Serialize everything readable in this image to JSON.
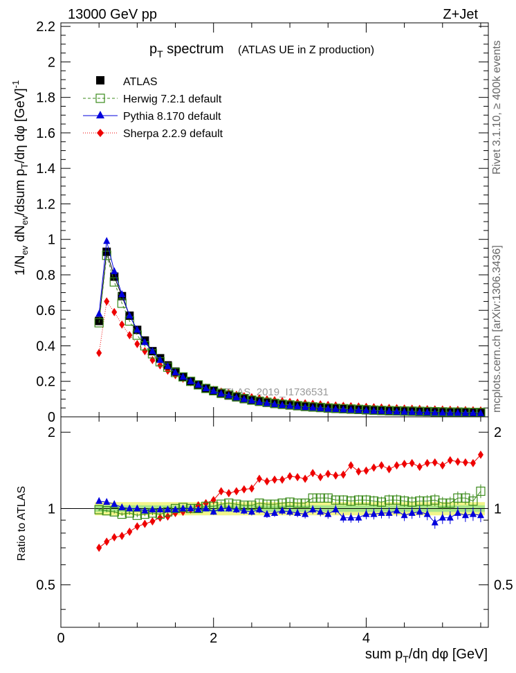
{
  "header": {
    "energy": "13000 GeV pp",
    "process": "Z+Jet",
    "side_label_top": "Rivet 3.1.10, ≥ 400k events",
    "side_label_bottom": "mcplots.cern.ch [arXiv:1306.3436]",
    "watermark": "ATLAS_2019_I1736531"
  },
  "chart_data": [
    {
      "type": "line",
      "title": "p_T spectrum",
      "subtitle": "(ATLAS UE in Z production)",
      "ylabel": "1/N_ev dN_ev/dsum p_T/dη dφ [GeV]^-1",
      "xlabel": "sum p_T/dη dφ [GeV]",
      "xlim": [
        0,
        5.6
      ],
      "ylim": [
        0,
        2.22
      ],
      "yticks": [
        "0",
        "0.2",
        "0.4",
        "0.6",
        "0.8",
        "1",
        "1.2",
        "1.4",
        "1.6",
        "1.8",
        "2",
        "2.2"
      ],
      "xticks": [
        "0",
        "2",
        "4"
      ],
      "legend_position": "top-left",
      "x": [
        0.5,
        0.6,
        0.7,
        0.8,
        0.9,
        1.0,
        1.1,
        1.2,
        1.3,
        1.4,
        1.5,
        1.6,
        1.7,
        1.8,
        1.9,
        2.0,
        2.1,
        2.2,
        2.3,
        2.4,
        2.5,
        2.6,
        2.7,
        2.8,
        2.9,
        3.0,
        3.1,
        3.2,
        3.3,
        3.4,
        3.5,
        3.6,
        3.7,
        3.8,
        3.9,
        4.0,
        4.1,
        4.2,
        4.3,
        4.4,
        4.5,
        4.6,
        4.7,
        4.8,
        4.9,
        5.0,
        5.1,
        5.2,
        5.3,
        5.4,
        5.5
      ],
      "series": [
        {
          "name": "ATLAS",
          "color": "#000000",
          "marker": "square-filled",
          "values": [
            0.54,
            0.93,
            0.79,
            0.68,
            0.57,
            0.49,
            0.43,
            0.37,
            0.33,
            0.29,
            0.255,
            0.225,
            0.2,
            0.18,
            0.16,
            0.145,
            0.13,
            0.12,
            0.11,
            0.1,
            0.092,
            0.085,
            0.079,
            0.073,
            0.068,
            0.064,
            0.06,
            0.056,
            0.053,
            0.05,
            0.047,
            0.045,
            0.043,
            0.041,
            0.039,
            0.037,
            0.035,
            0.034,
            0.032,
            0.031,
            0.03,
            0.029,
            0.028,
            0.027,
            0.026,
            0.025,
            0.024,
            0.024,
            0.023,
            0.022,
            0.022
          ]
        },
        {
          "name": "Herwig 7.2.1 default",
          "color": "#3a8a1a",
          "marker": "square-open",
          "dash": "4,3",
          "values": [
            0.53,
            0.91,
            0.76,
            0.64,
            0.54,
            0.46,
            0.4,
            0.355,
            0.31,
            0.28,
            0.25,
            0.225,
            0.2,
            0.18,
            0.16,
            0.147,
            0.133,
            0.124,
            0.113,
            0.103,
            0.094,
            0.088,
            0.082,
            0.076,
            0.071,
            0.067,
            0.063,
            0.059,
            0.056,
            0.053,
            0.05,
            0.048,
            0.046,
            0.044,
            0.042,
            0.04,
            0.038,
            0.036,
            0.035,
            0.034,
            0.033,
            0.032,
            0.031,
            0.03,
            0.029,
            0.028,
            0.027,
            0.027,
            0.026,
            0.025,
            0.025
          ]
        },
        {
          "name": "Pythia 8.170 default",
          "color": "#0000dd",
          "marker": "triangle-filled",
          "values": [
            0.58,
            0.99,
            0.82,
            0.69,
            0.57,
            0.49,
            0.42,
            0.37,
            0.32,
            0.285,
            0.25,
            0.225,
            0.2,
            0.18,
            0.16,
            0.145,
            0.13,
            0.12,
            0.109,
            0.099,
            0.091,
            0.083,
            0.076,
            0.071,
            0.066,
            0.062,
            0.058,
            0.054,
            0.051,
            0.048,
            0.045,
            0.043,
            0.041,
            0.039,
            0.037,
            0.035,
            0.033,
            0.032,
            0.031,
            0.029,
            0.028,
            0.027,
            0.026,
            0.025,
            0.023,
            0.023,
            0.022,
            0.022,
            0.021,
            0.021,
            0.02
          ]
        },
        {
          "name": "Sherpa 2.2.9 default",
          "color": "#ee0000",
          "marker": "diamond-filled",
          "dash": "1,2",
          "values": [
            0.36,
            0.65,
            0.59,
            0.52,
            0.46,
            0.41,
            0.37,
            0.32,
            0.29,
            0.26,
            0.235,
            0.215,
            0.195,
            0.18,
            0.165,
            0.152,
            0.142,
            0.133,
            0.124,
            0.116,
            0.11,
            0.104,
            0.098,
            0.093,
            0.088,
            0.084,
            0.08,
            0.076,
            0.073,
            0.07,
            0.067,
            0.064,
            0.062,
            0.06,
            0.058,
            0.056,
            0.054,
            0.052,
            0.05,
            0.049,
            0.047,
            0.046,
            0.045,
            0.043,
            0.042,
            0.041,
            0.04,
            0.039,
            0.038,
            0.037,
            0.036
          ]
        }
      ]
    },
    {
      "type": "line",
      "title": "",
      "ylabel": "Ratio to ATLAS",
      "xlabel": "sum p_T/dη dφ [GeV]",
      "xlim": [
        0,
        5.6
      ],
      "ylim": [
        0.34,
        2.3
      ],
      "yticks": [
        "0.5",
        "1",
        "2"
      ],
      "reference_band": {
        "inner": 0.03,
        "outer": 0.06
      },
      "x": [
        0.5,
        0.6,
        0.7,
        0.8,
        0.9,
        1.0,
        1.1,
        1.2,
        1.3,
        1.4,
        1.5,
        1.6,
        1.7,
        1.8,
        1.9,
        2.0,
        2.1,
        2.2,
        2.3,
        2.4,
        2.5,
        2.6,
        2.7,
        2.8,
        2.9,
        3.0,
        3.1,
        3.2,
        3.3,
        3.4,
        3.5,
        3.6,
        3.7,
        3.8,
        3.9,
        4.0,
        4.1,
        4.2,
        4.3,
        4.4,
        4.5,
        4.6,
        4.7,
        4.8,
        4.9,
        5.0,
        5.1,
        5.2,
        5.3,
        5.4,
        5.5
      ],
      "series": [
        {
          "name": "Herwig 7.2.1 default",
          "color": "#3a8a1a",
          "marker": "square-open",
          "values": [
            0.99,
            0.98,
            0.97,
            0.95,
            0.96,
            0.94,
            0.95,
            0.96,
            0.95,
            0.97,
            1.0,
            1.01,
            1.0,
            1.0,
            1.02,
            1.02,
            1.04,
            1.05,
            1.04,
            1.03,
            1.03,
            1.05,
            1.04,
            1.04,
            1.05,
            1.06,
            1.05,
            1.05,
            1.1,
            1.1,
            1.1,
            1.08,
            1.08,
            1.07,
            1.08,
            1.08,
            1.07,
            1.06,
            1.08,
            1.08,
            1.07,
            1.06,
            1.07,
            1.07,
            1.08,
            1.05,
            1.05,
            1.1,
            1.1,
            1.07,
            1.17
          ]
        },
        {
          "name": "Pythia 8.170 default",
          "color": "#0000dd",
          "marker": "triangle-filled",
          "values": [
            1.07,
            1.06,
            1.04,
            1.01,
            1.0,
            1.0,
            0.98,
            0.99,
            0.99,
            0.99,
            0.99,
            1.0,
            1.0,
            0.99,
            1.0,
            0.97,
            1.0,
            1.0,
            0.99,
            0.98,
            0.97,
            0.99,
            0.95,
            0.96,
            0.98,
            0.97,
            0.96,
            0.95,
            0.99,
            0.97,
            0.95,
            0.99,
            0.92,
            0.92,
            0.92,
            0.95,
            0.95,
            0.96,
            0.96,
            0.98,
            0.94,
            0.96,
            0.97,
            0.95,
            0.88,
            0.92,
            0.92,
            0.96,
            0.94,
            0.95,
            0.94
          ]
        },
        {
          "name": "Sherpa 2.2.9 default",
          "color": "#ee0000",
          "marker": "diamond-filled",
          "values": [
            0.7,
            0.74,
            0.77,
            0.78,
            0.81,
            0.85,
            0.87,
            0.89,
            0.92,
            0.93,
            0.96,
            0.97,
            0.99,
            1.03,
            1.05,
            1.08,
            1.17,
            1.15,
            1.17,
            1.19,
            1.2,
            1.31,
            1.28,
            1.3,
            1.3,
            1.34,
            1.33,
            1.31,
            1.38,
            1.33,
            1.37,
            1.35,
            1.36,
            1.48,
            1.4,
            1.41,
            1.45,
            1.48,
            1.43,
            1.48,
            1.5,
            1.51,
            1.46,
            1.51,
            1.52,
            1.48,
            1.55,
            1.53,
            1.52,
            1.51,
            1.63
          ]
        }
      ]
    }
  ]
}
